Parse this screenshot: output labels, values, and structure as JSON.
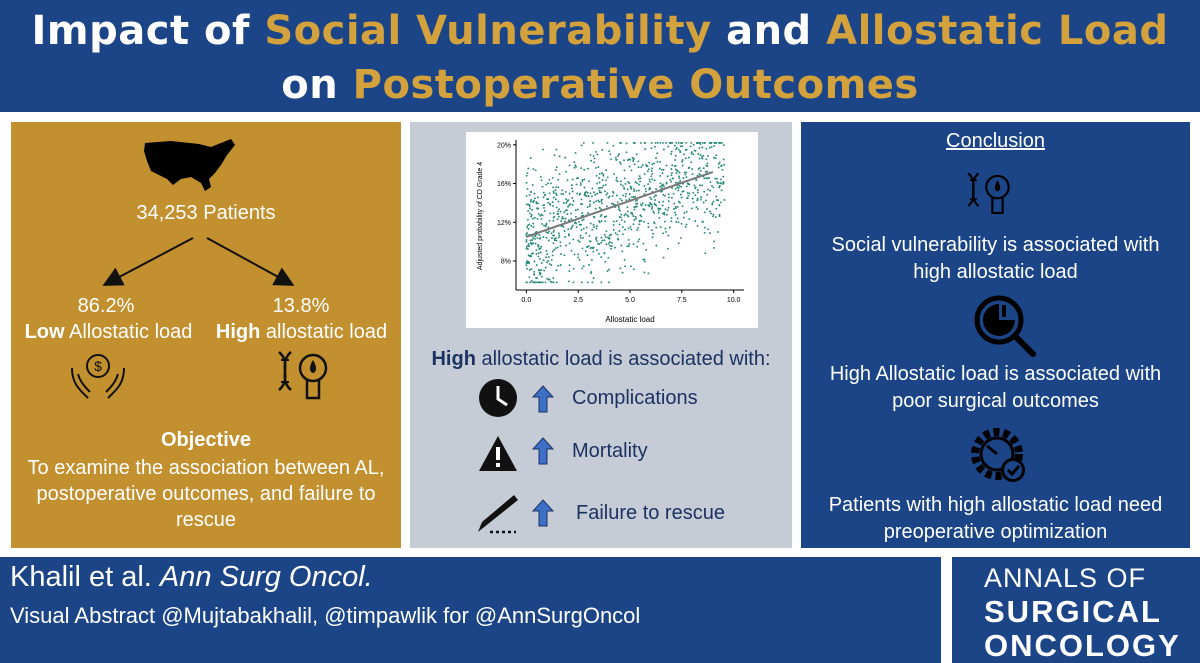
{
  "title": {
    "w1": "Impact of ",
    "w2": "Social Vulnerability",
    "w3": " and ",
    "w4": "Allostatic Load",
    "w5": "on ",
    "w6": "Postoperative Outcomes"
  },
  "left": {
    "patients": "34,253  Patients",
    "low_pct": "86.2%",
    "low_bold": "Low",
    "low_rest": " Allostatic load",
    "high_pct": "13.8%",
    "high_bold": "High",
    "high_rest": " allostatic load",
    "objective_heading": "Objective",
    "objective_line1": "To examine the association between AL,",
    "objective_line2": "postoperative outcomes, and failure to",
    "objective_line3": "rescue"
  },
  "middle": {
    "heading_bold": "High",
    "heading_rest": " allostatic load is associated with:",
    "items": [
      "Complications",
      "Mortality",
      "Failure to rescue"
    ]
  },
  "chart_data": {
    "type": "scatter",
    "title": "",
    "xlabel": "Allostatic load",
    "ylabel": "Adjusted probability of CD Grade 4",
    "x_ticks": [
      "0.0",
      "2.5",
      "5.0",
      "7.5",
      "10.0"
    ],
    "y_ticks": [
      "8%",
      "12%",
      "16%",
      "20%"
    ],
    "xlim": [
      -0.5,
      10.5
    ],
    "ylim": [
      5,
      20.5
    ],
    "trend_line": {
      "x": [
        0,
        9
      ],
      "y": [
        10.5,
        17.2
      ]
    },
    "point_color": "#2a8a7a",
    "trend_color": "#777777",
    "grid": false
  },
  "right": {
    "heading": "Conclusion",
    "c1_line1": "Social vulnerability is associated with",
    "c1_line2": "high allostatic load",
    "c2_line1": "High Allostatic load is associated with",
    "c2_line2": "poor surgical outcomes",
    "c3_line1": "Patients with high allostatic load need",
    "c3_line2": "preoperative optimization"
  },
  "footer": {
    "author": "Khalil et al. ",
    "journal": "Ann Surg Oncol.",
    "credit": "Visual Abstract @Mujtabakhalil, @timpawlik for @AnnSurgOncol"
  },
  "logo": {
    "line1": "ANNALS OF",
    "line2": "SURGICAL",
    "line3": "ONCOLOGY"
  },
  "colors": {
    "navy": "#1c4587",
    "gold": "#c2902f",
    "title_gold": "#d4a23c",
    "panel_gray": "#c5ccd6",
    "arrow_blue": "#3d6fc6"
  },
  "icons": [
    "usa-map-icon",
    "money-hands-icon",
    "dna-droplet-icon",
    "clock-icon",
    "warning-icon",
    "scalpel-icon",
    "up-arrow-icon",
    "analysis-magnifier-icon",
    "gear-check-icon"
  ]
}
